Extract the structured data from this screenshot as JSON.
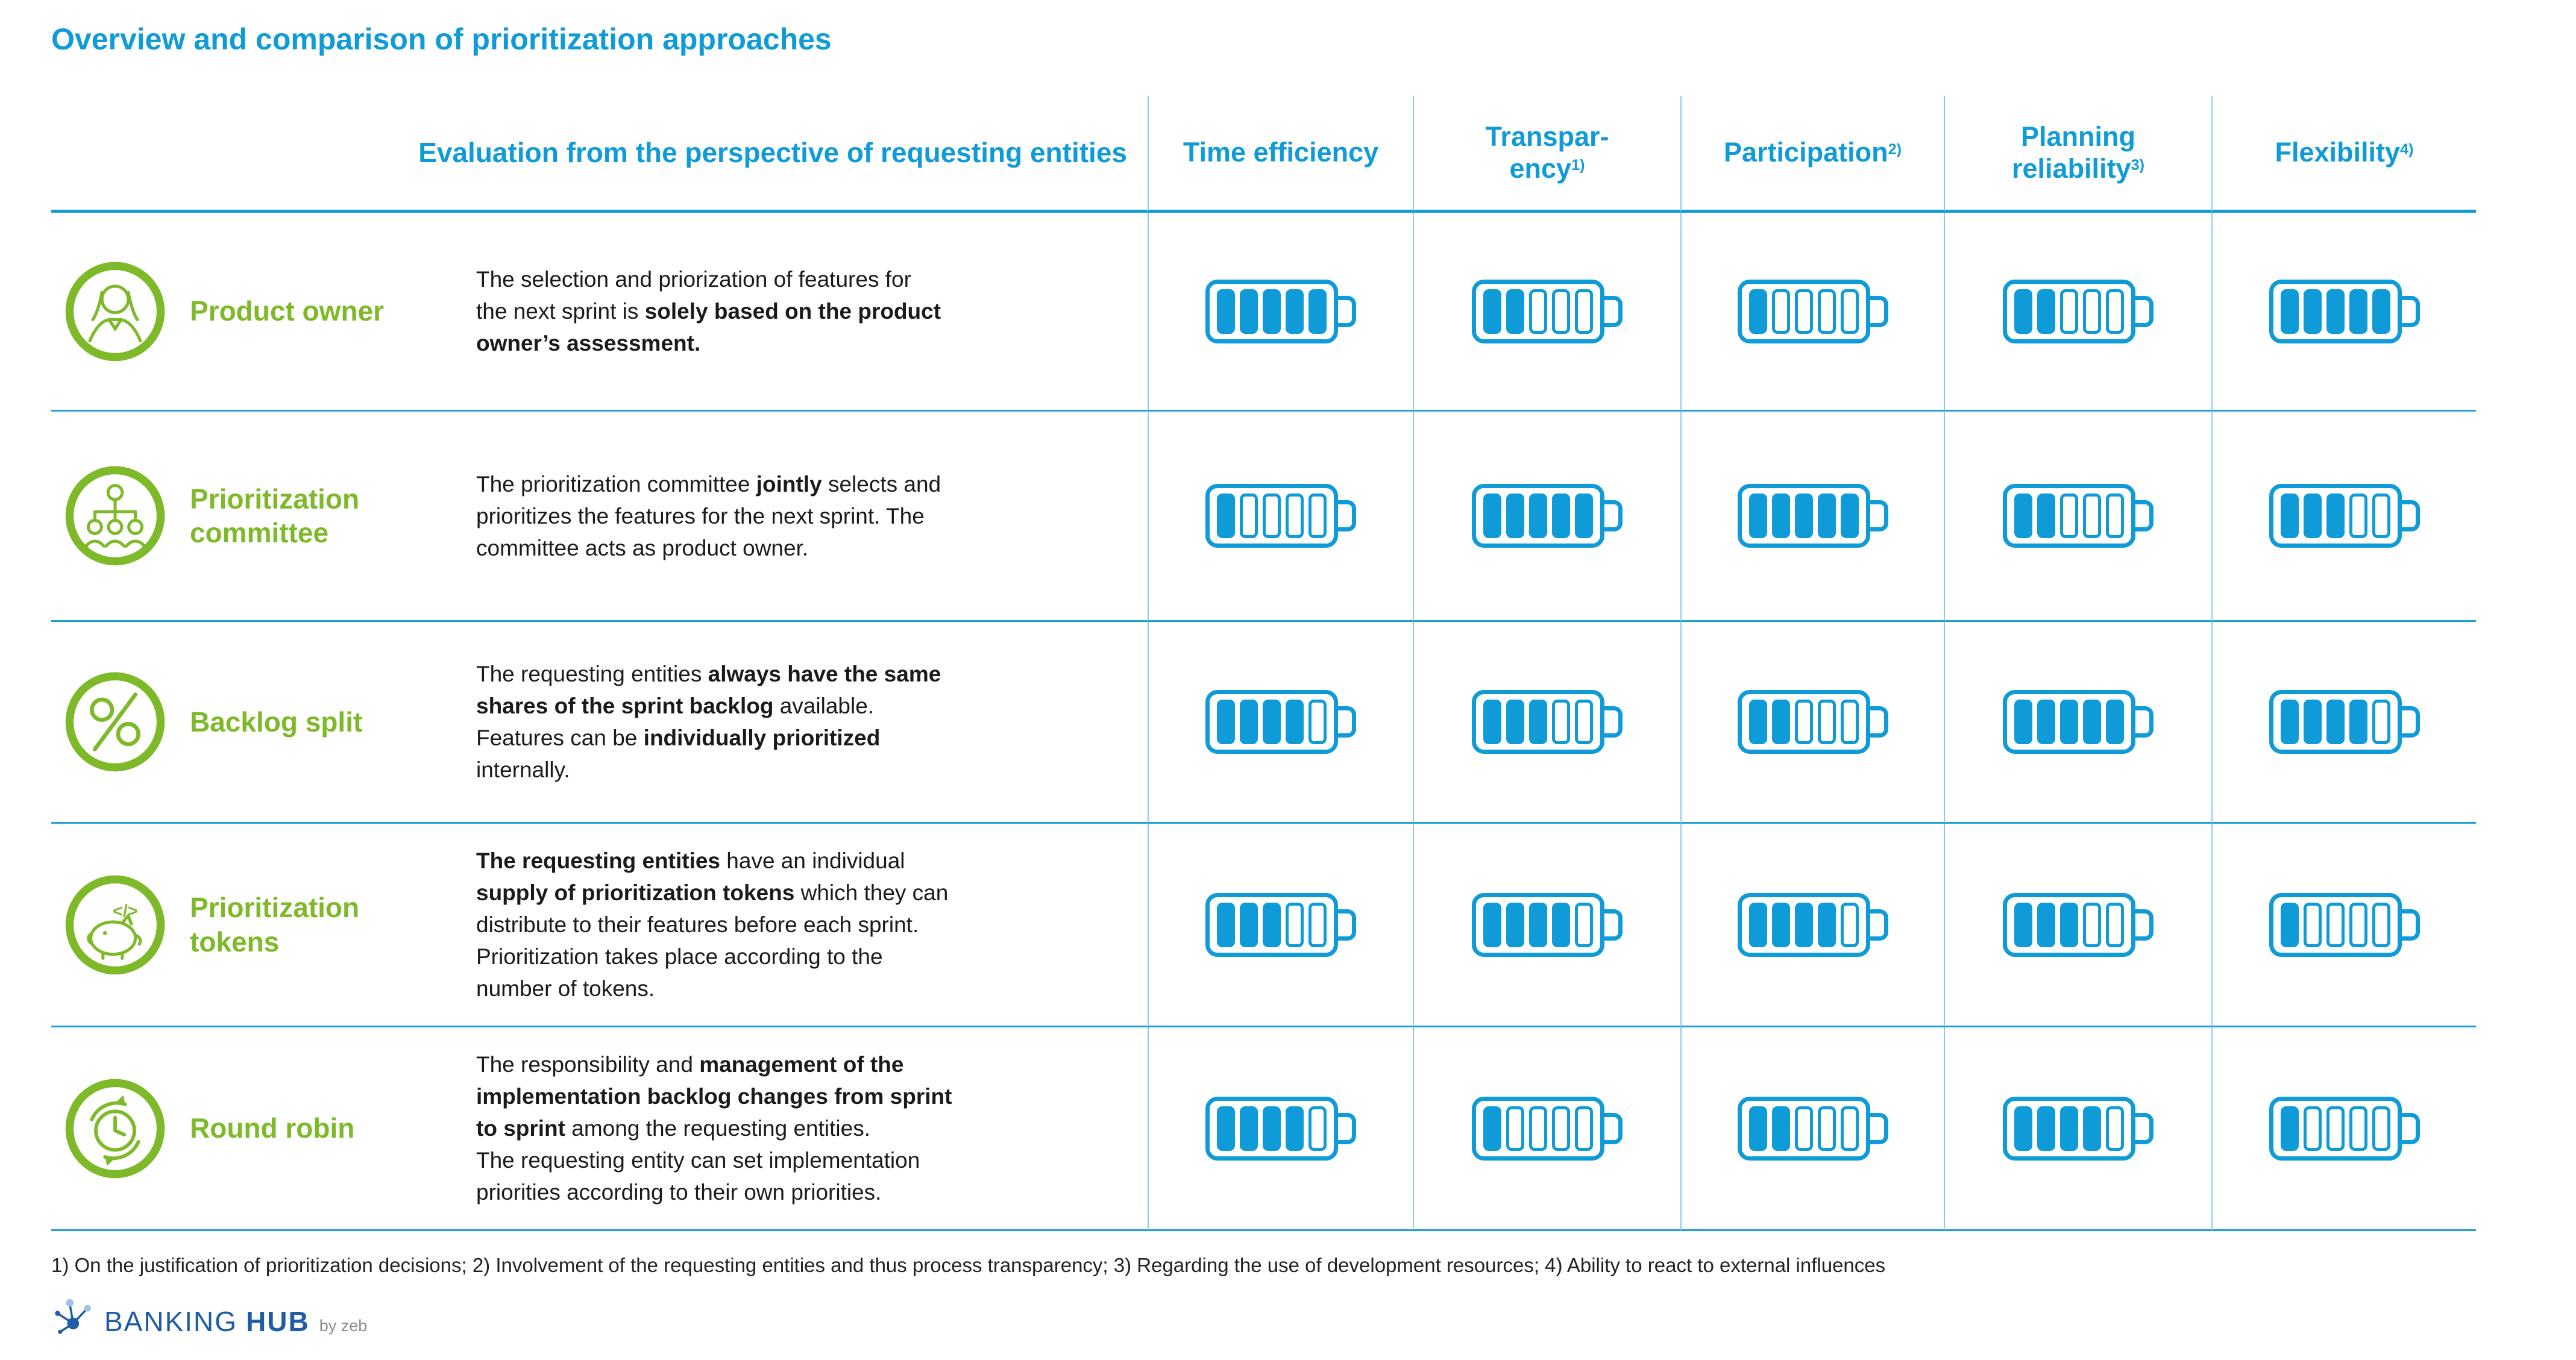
{
  "title": "Overview and comparison of prioritization approaches",
  "accent_colors": {
    "blue": "#0F9BD8",
    "green": "#7DB928",
    "navy": "#1F5CA8",
    "gray": "#8A8A8A"
  },
  "table": {
    "eval_header": "Evaluation from the perspective of requesting entities",
    "columns": [
      {
        "lines": [
          "Time efficiency"
        ],
        "sup": ""
      },
      {
        "lines": [
          "Transpar-",
          "ency"
        ],
        "sup": "1)"
      },
      {
        "lines": [
          "Participation"
        ],
        "sup": "2)"
      },
      {
        "lines": [
          "Planning",
          "reliability"
        ],
        "sup": "3)"
      },
      {
        "lines": [
          "Flexibility"
        ],
        "sup": "4)"
      }
    ],
    "max_rating": 5,
    "rows": [
      {
        "icon": "product-owner-icon",
        "label_lines": [
          "Product owner"
        ],
        "description": [
          {
            "text": "The selection and priorization of features for\nthe next sprint is ",
            "bold": false
          },
          {
            "text": "solely based on the product\nowner’s assessment.",
            "bold": true
          }
        ],
        "ratings": [
          5,
          2,
          1,
          2,
          5
        ]
      },
      {
        "icon": "prioritization-committee-icon",
        "label_lines": [
          "Prioritization",
          "committee"
        ],
        "description": [
          {
            "text": "The prioritization committee ",
            "bold": false
          },
          {
            "text": "jointly",
            "bold": true
          },
          {
            "text": " selects and\nprioritizes the features for the next sprint. The\ncommittee acts as product owner.",
            "bold": false
          }
        ],
        "ratings": [
          1,
          5,
          5,
          2,
          3
        ]
      },
      {
        "icon": "backlog-split-icon",
        "label_lines": [
          "Backlog split"
        ],
        "description": [
          {
            "text": "The requesting entities ",
            "bold": false
          },
          {
            "text": "always have the same\nshares of the sprint backlog",
            "bold": true
          },
          {
            "text": " available.",
            "bold": false
          },
          {
            "text": "\nFeatures can be ",
            "bold": false
          },
          {
            "text": "individually prioritized",
            "bold": true
          },
          {
            "text": "\ninternally.",
            "bold": false
          }
        ],
        "ratings": [
          4,
          3,
          2,
          5,
          4
        ]
      },
      {
        "icon": "prioritization-tokens-icon",
        "label_lines": [
          "Prioritization",
          "tokens"
        ],
        "description": [
          {
            "text": "The requesting entities",
            "bold": true
          },
          {
            "text": " have an individual\n",
            "bold": false
          },
          {
            "text": "supply of prioritization tokens",
            "bold": true
          },
          {
            "text": " which they can\ndistribute to their features before each sprint.\nPrioritization takes place according to the\nnumber of tokens.",
            "bold": false
          }
        ],
        "ratings": [
          3,
          4,
          4,
          3,
          1
        ]
      },
      {
        "icon": "round-robin-icon",
        "label_lines": [
          "Round robin"
        ],
        "description": [
          {
            "text": "The responsibility and ",
            "bold": false
          },
          {
            "text": "management of the\nimplementation backlog changes from sprint\nto sprint",
            "bold": true
          },
          {
            "text": " among the requesting entities.",
            "bold": false
          },
          {
            "text": "\nThe requesting entity can set implementation\npriorities according to their own priorities.",
            "bold": false
          }
        ],
        "ratings": [
          4,
          1,
          2,
          4,
          1
        ]
      }
    ]
  },
  "footnote": "1) On the justification of prioritization decisions; 2) Involvement of the requesting entities and thus process transparency; 3) Regarding the use of development resources; 4) Ability to react to external influences",
  "logo": {
    "name": "BANKING",
    "name_bold": "HUB",
    "byline": "by zeb"
  }
}
